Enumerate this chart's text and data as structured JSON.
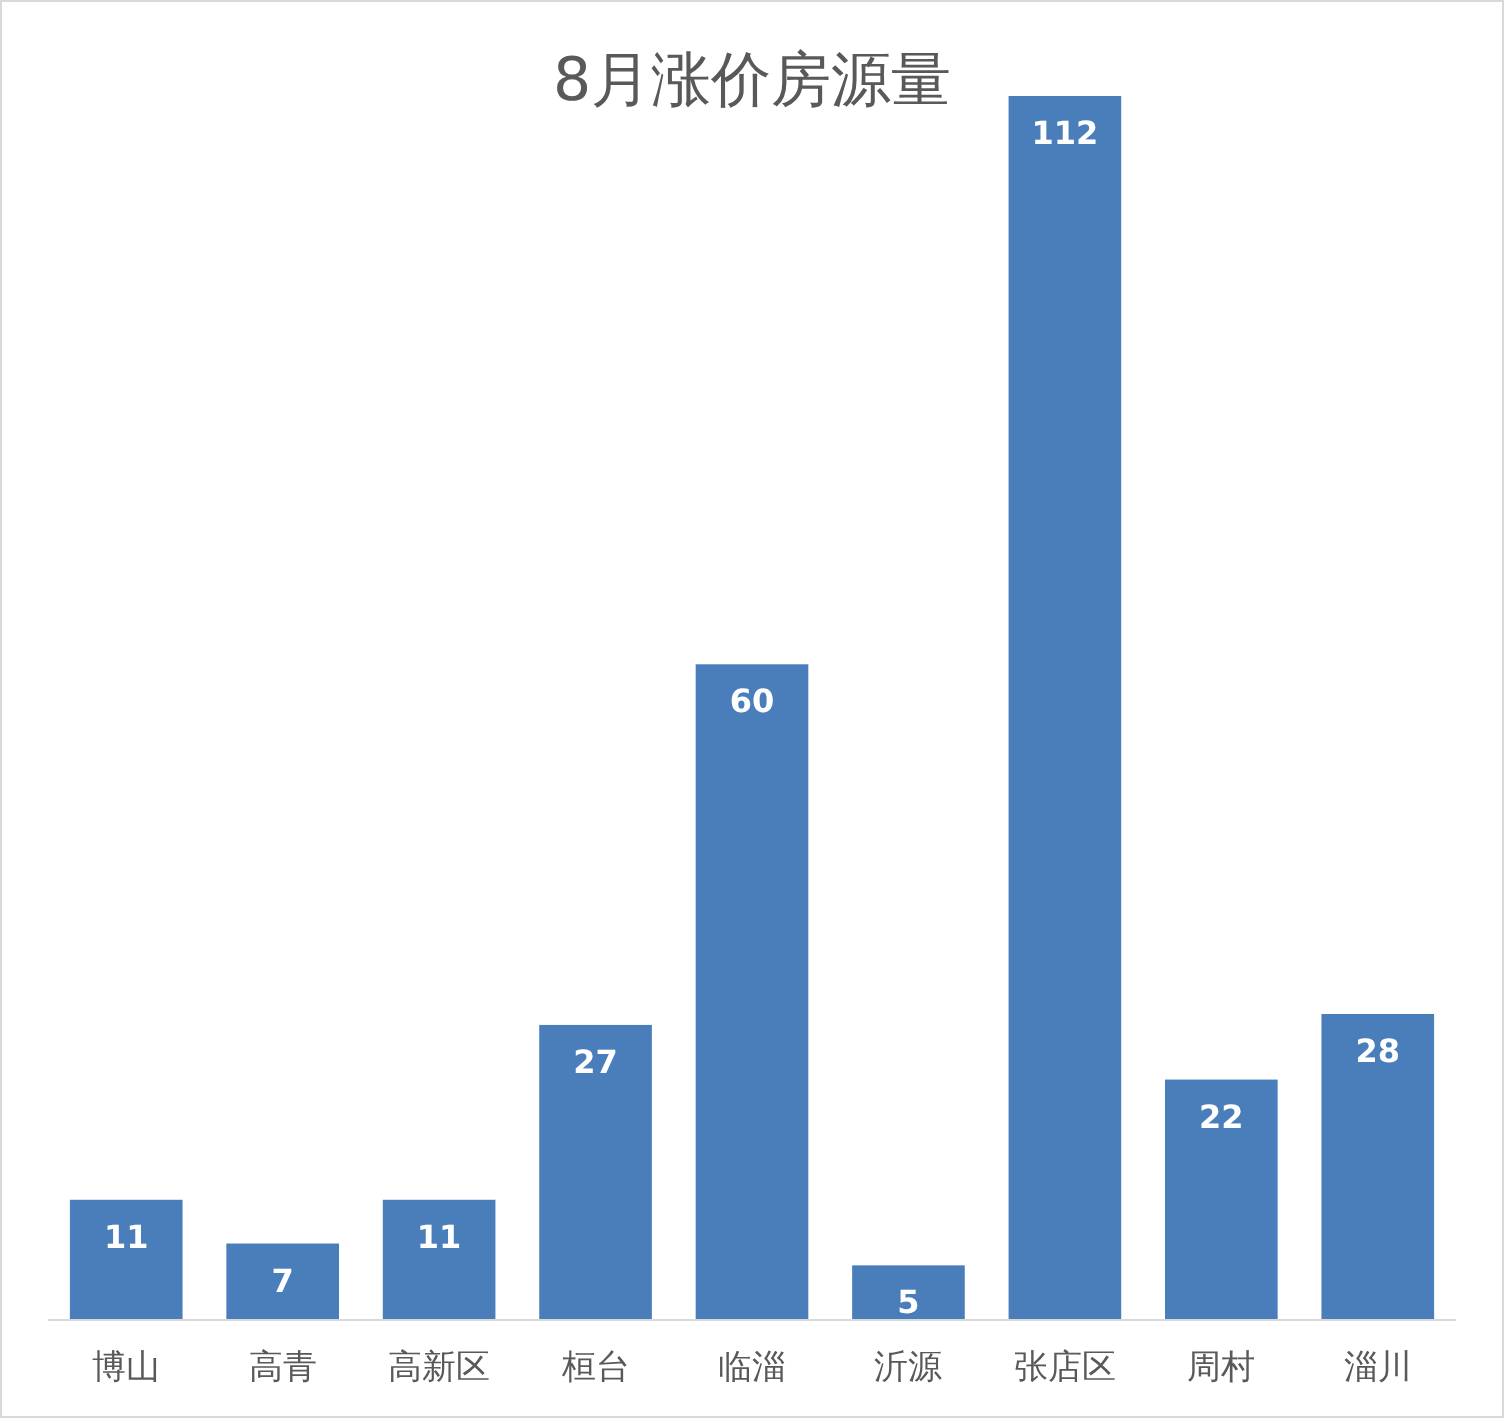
{
  "chart_data": {
    "type": "bar",
    "title": "8月涨价房源量",
    "categories": [
      "博山",
      "高青",
      "高新区",
      "桓台",
      "临淄",
      "沂源",
      "张店区",
      "周村",
      "淄川"
    ],
    "values": [
      11,
      7,
      11,
      27,
      60,
      5,
      112,
      22,
      28
    ],
    "color": "#4a7ebb",
    "data_labels": true
  }
}
